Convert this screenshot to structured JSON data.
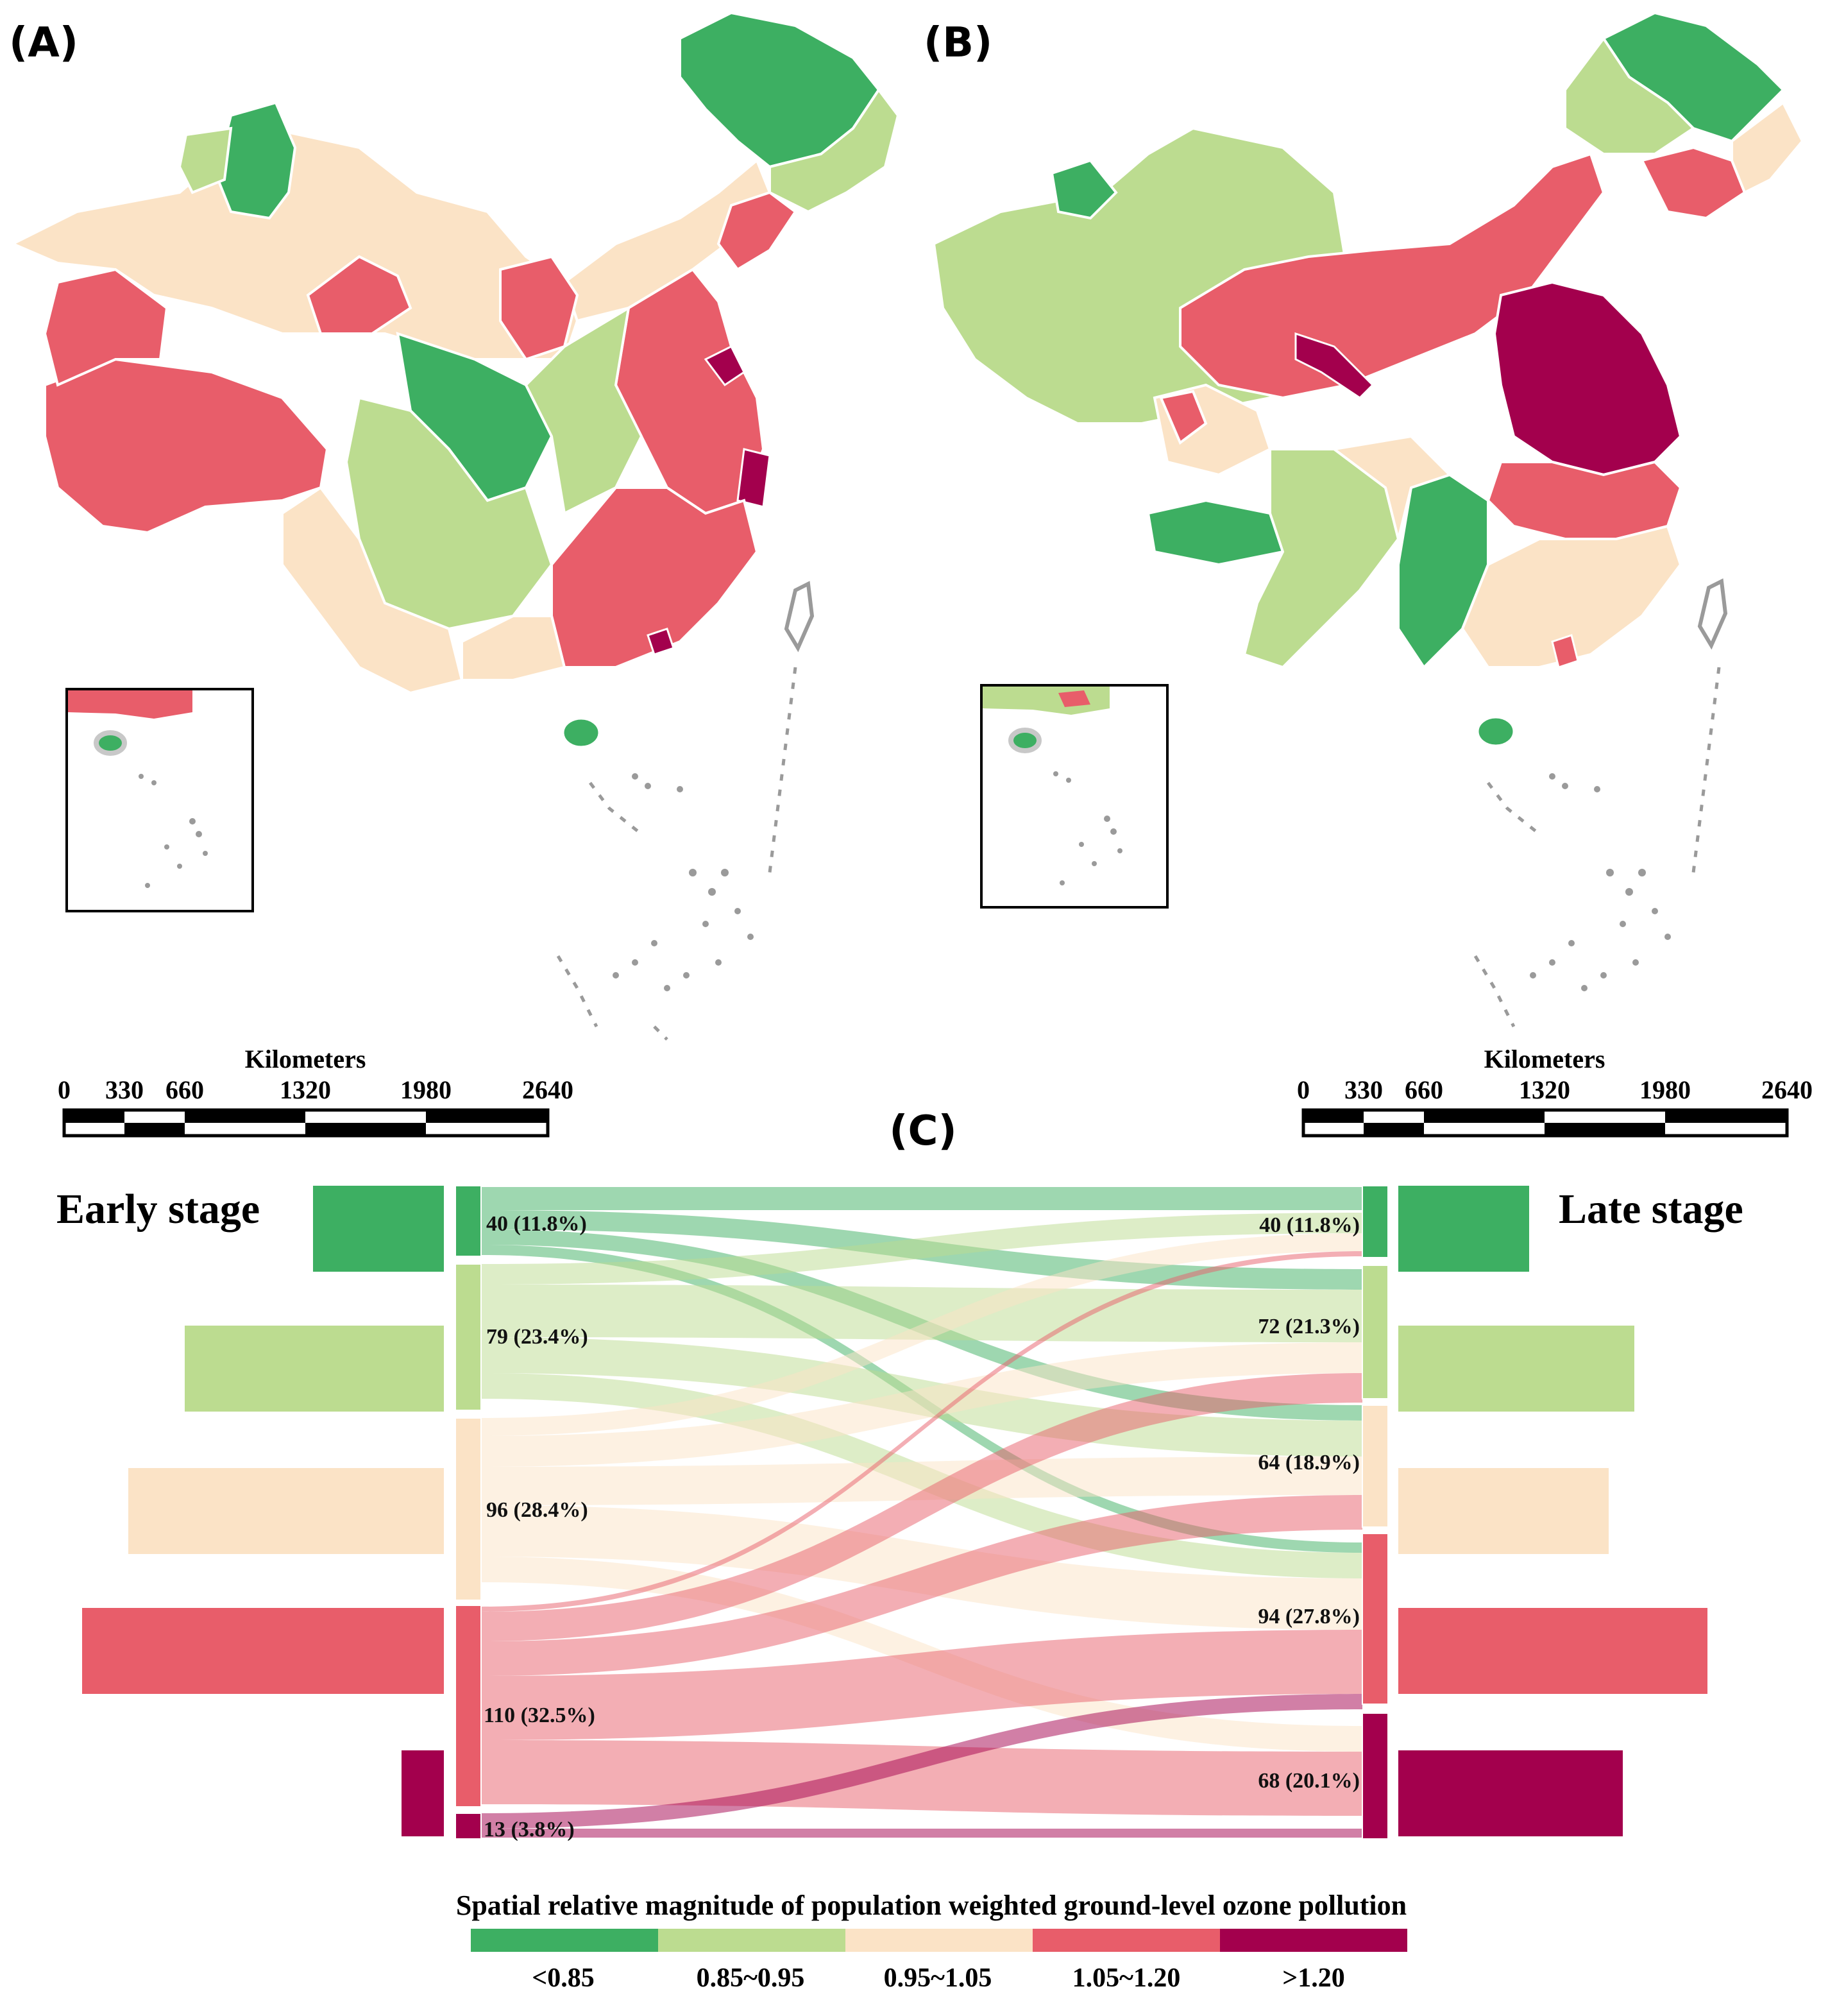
{
  "panels": {
    "a_label": "(A)",
    "b_label": "(B)",
    "c_label": "(C)"
  },
  "scale_bar": {
    "title": "Kilometers",
    "ticks": [
      "0",
      "330",
      "660",
      "1320",
      "1980",
      "2640"
    ]
  },
  "sankey": {
    "left_title": "Early stage",
    "right_title": "Late stage",
    "left_nodes": [
      {
        "label": "40 (11.8%)",
        "count": 40,
        "pct": 11.8
      },
      {
        "label": "79 (23.4%)",
        "count": 79,
        "pct": 23.4
      },
      {
        "label": "96 (28.4%)",
        "count": 96,
        "pct": 28.4
      },
      {
        "label": "110 (32.5%)",
        "count": 110,
        "pct": 32.5
      },
      {
        "label": "13 (3.8%)",
        "count": 13,
        "pct": 3.8
      }
    ],
    "right_nodes": [
      {
        "label": "40 (11.8%)",
        "count": 40,
        "pct": 11.8
      },
      {
        "label": "72 (21.3%)",
        "count": 72,
        "pct": 21.3
      },
      {
        "label": "64 (18.9%)",
        "count": 64,
        "pct": 18.9
      },
      {
        "label": "94 (27.8%)",
        "count": 94,
        "pct": 27.8
      },
      {
        "label": "68 (20.1%)",
        "count": 68,
        "pct": 20.1
      }
    ]
  },
  "legend": {
    "title": "Spatial relative magnitude of population weighted ground-level ozone pollution",
    "classes": [
      {
        "label": "<0.85",
        "color": "#3daf62"
      },
      {
        "label": "0.85~0.95",
        "color": "#bcdc90"
      },
      {
        "label": "0.95~1.05",
        "color": "#fbe3c6"
      },
      {
        "label": "1.05~1.20",
        "color": "#e85d6a"
      },
      {
        "label": ">1.20",
        "color": "#a3004d"
      }
    ]
  }
}
